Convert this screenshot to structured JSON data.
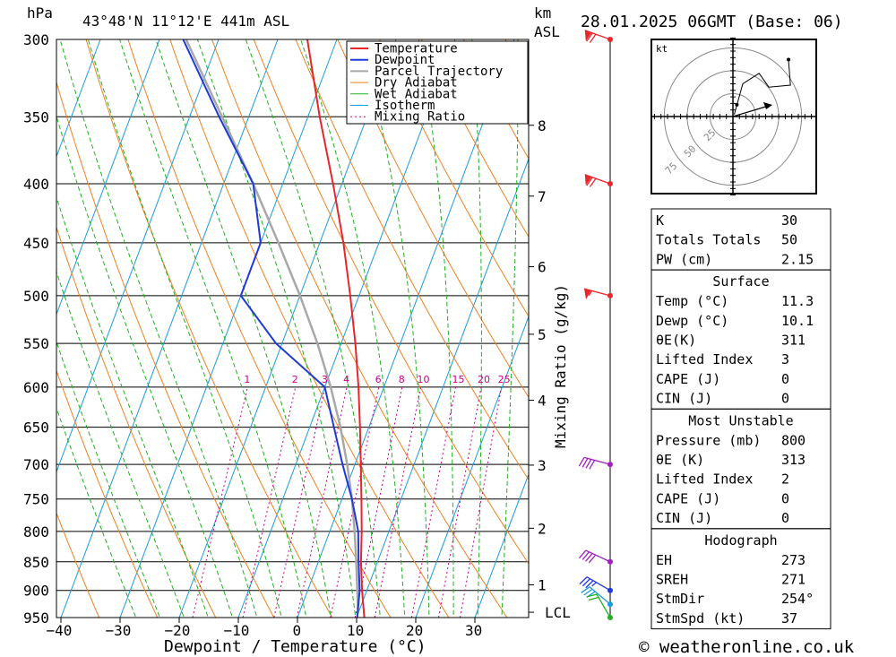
{
  "header": {
    "pressure_unit": "hPa",
    "location": "43°48'N  11°12'E  441m  ASL",
    "height_unit": "km",
    "height_unit2": "ASL",
    "date": "28.01.2025  06GMT  (Base: 06)"
  },
  "footer": {
    "credit": "© weatheronline.co.uk"
  },
  "chart_data": {
    "type": "line",
    "title": "43°48'N  11°12'E  441m  ASL",
    "xlabel": "Dewpoint / Temperature (°C)",
    "ylabel": "hPa",
    "secondary_ylabel": "Mixing Ratio (g/kg)",
    "x_ticks": [
      -40,
      -30,
      -20,
      -10,
      0,
      10,
      20,
      30
    ],
    "pressure_levels": [
      300,
      350,
      400,
      450,
      500,
      550,
      600,
      650,
      700,
      750,
      800,
      850,
      900,
      950
    ],
    "height_km_ticks": [
      {
        "label": "8",
        "p": 356
      },
      {
        "label": "7",
        "p": 410
      },
      {
        "label": "6",
        "p": 472
      },
      {
        "label": "5",
        "p": 540
      },
      {
        "label": "4",
        "p": 616
      },
      {
        "label": "3",
        "p": 701
      },
      {
        "label": "2",
        "p": 795
      },
      {
        "label": "1",
        "p": 890
      },
      {
        "label": "LCL",
        "p": 940
      }
    ],
    "mixing_ratio_labels": [
      "1",
      "2",
      "3",
      "4",
      "6",
      "8",
      "10",
      "15",
      "20",
      "25"
    ],
    "mixing_ratio_values": [
      1,
      2,
      3,
      4,
      6,
      8,
      10,
      15,
      20,
      25
    ],
    "legend": [
      {
        "name": "Temperature",
        "color": "#e8262a"
      },
      {
        "name": "Dewpoint",
        "color": "#1d3ad8"
      },
      {
        "name": "Parcel Trajectory",
        "color": "#a8a8a8"
      },
      {
        "name": "Dry Adiabat",
        "color": "#f08020"
      },
      {
        "name": "Wet Adiabat",
        "color": "#22b022"
      },
      {
        "name": "Isotherm",
        "color": "#1a9ce0"
      },
      {
        "name": "Mixing Ratio",
        "color": "#cc0088"
      }
    ],
    "series": [
      {
        "name": "Temperature",
        "points": [
          [
            950,
            11.3
          ],
          [
            900,
            9.2
          ],
          [
            850,
            7.2
          ],
          [
            800,
            5.4
          ],
          [
            750,
            3.3
          ],
          [
            700,
            1.0
          ],
          [
            650,
            -1.5
          ],
          [
            600,
            -4.3
          ],
          [
            550,
            -7.6
          ],
          [
            500,
            -11.5
          ],
          [
            450,
            -16.0
          ],
          [
            400,
            -21.5
          ],
          [
            350,
            -28.0
          ],
          [
            300,
            -35.0
          ]
        ]
      },
      {
        "name": "Dewpoint",
        "points": [
          [
            950,
            10.1
          ],
          [
            900,
            8.8
          ],
          [
            850,
            6.8
          ],
          [
            800,
            4.8
          ],
          [
            750,
            1.7
          ],
          [
            700,
            -2.1
          ],
          [
            650,
            -5.9
          ],
          [
            600,
            -10.0
          ],
          [
            550,
            -21.0
          ],
          [
            500,
            -30.0
          ],
          [
            450,
            -30.0
          ],
          [
            400,
            -35.0
          ],
          [
            350,
            -45.0
          ],
          [
            300,
            -56.0
          ]
        ]
      },
      {
        "name": "Parcel Trajectory",
        "points": [
          [
            940,
            9.9
          ],
          [
            900,
            8.4
          ],
          [
            850,
            6.4
          ],
          [
            800,
            4.2
          ],
          [
            750,
            1.7
          ],
          [
            700,
            -1.3
          ],
          [
            650,
            -4.8
          ],
          [
            600,
            -9.0
          ],
          [
            550,
            -14.0
          ],
          [
            500,
            -20.0
          ],
          [
            450,
            -27.0
          ],
          [
            400,
            -35.0
          ],
          [
            350,
            -44.5
          ],
          [
            300,
            -55.5
          ]
        ]
      }
    ],
    "wind_barbs": [
      {
        "p": 300,
        "speed_kt": 70,
        "dir": 250
      },
      {
        "p": 400,
        "speed_kt": 70,
        "dir": 250
      },
      {
        "p": 500,
        "speed_kt": 55,
        "dir": 255
      },
      {
        "p": 700,
        "speed_kt": 40,
        "dir": 255
      },
      {
        "p": 850,
        "speed_kt": 40,
        "dir": 245
      },
      {
        "p": 900,
        "speed_kt": 35,
        "dir": 240
      },
      {
        "p": 925,
        "speed_kt": 30,
        "dir": 230
      },
      {
        "p": 950,
        "speed_kt": 20,
        "dir": 210
      }
    ],
    "hodograph": {
      "unit": "kt",
      "ring_labels": [
        "25",
        "50",
        "75"
      ],
      "trace": [
        [
          0.2,
          0.3
        ],
        [
          1.5,
          5.0
        ],
        [
          4.0,
          6.6
        ],
        [
          5.5,
          4.5
        ],
        [
          8.8,
          4.8
        ],
        [
          8.5,
          8.7
        ]
      ],
      "storm_motion": {
        "dir": 254,
        "speed": 37
      }
    }
  },
  "indices": {
    "general": [
      {
        "label": "K",
        "value": "30"
      },
      {
        "label": "Totals Totals",
        "value": "50"
      },
      {
        "label": "PW (cm)",
        "value": "2.15"
      }
    ],
    "surface_title": "Surface",
    "surface": [
      {
        "label": "Temp (°C)",
        "value": "11.3"
      },
      {
        "label": "Dewp (°C)",
        "value": "10.1"
      },
      {
        "label": "θE(K)",
        "value": "311"
      },
      {
        "label": "Lifted Index",
        "value": "3"
      },
      {
        "label": "CAPE (J)",
        "value": "0"
      },
      {
        "label": "CIN (J)",
        "value": "0"
      }
    ],
    "unstable_title": "Most Unstable",
    "unstable": [
      {
        "label": "Pressure (mb)",
        "value": "800"
      },
      {
        "label": "θE (K)",
        "value": "313"
      },
      {
        "label": "Lifted Index",
        "value": "2"
      },
      {
        "label": "CAPE (J)",
        "value": "0"
      },
      {
        "label": "CIN (J)",
        "value": "0"
      }
    ],
    "hodograph_title": "Hodograph",
    "hodograph": [
      {
        "label": "EH",
        "value": "273"
      },
      {
        "label": "SREH",
        "value": "271"
      },
      {
        "label": "StmDir",
        "value": "254°"
      },
      {
        "label": "StmSpd (kt)",
        "value": "37"
      }
    ]
  }
}
